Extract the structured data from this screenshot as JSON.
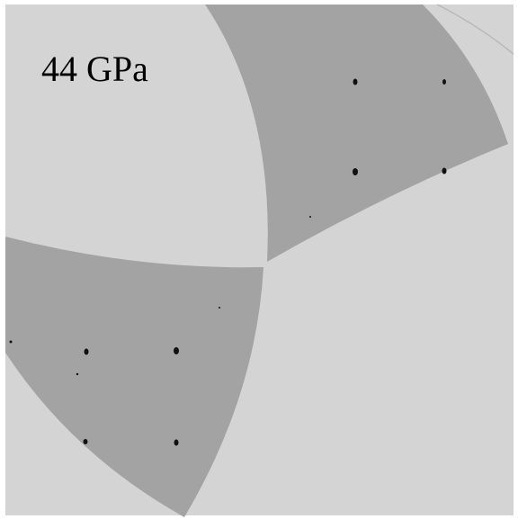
{
  "label": "44 GPa"
}
